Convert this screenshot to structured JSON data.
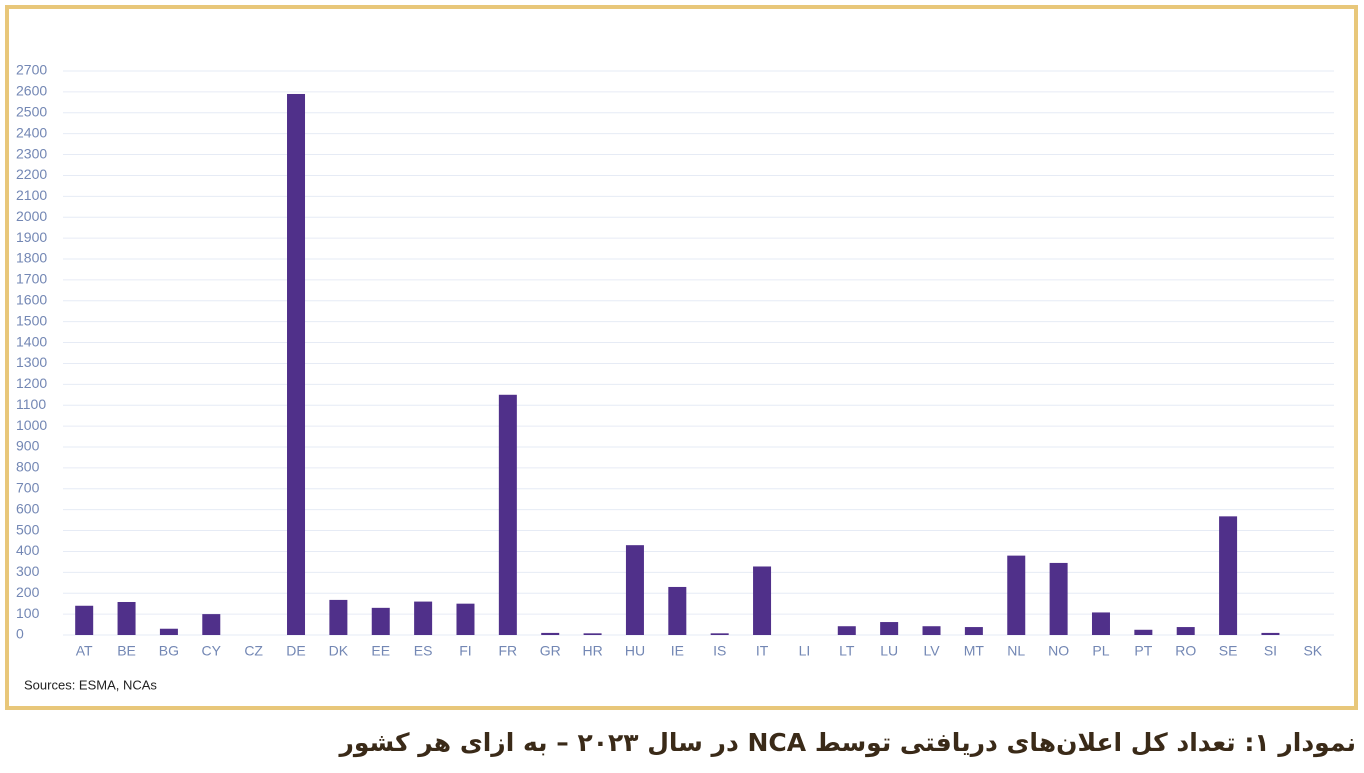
{
  "chart_data": {
    "type": "bar",
    "categories": [
      "AT",
      "BE",
      "BG",
      "CY",
      "CZ",
      "DE",
      "DK",
      "EE",
      "ES",
      "FI",
      "FR",
      "GR",
      "HR",
      "HU",
      "IE",
      "IS",
      "IT",
      "LI",
      "LT",
      "LU",
      "LV",
      "MT",
      "NL",
      "NO",
      "PL",
      "PT",
      "RO",
      "SE",
      "SI",
      "SK"
    ],
    "values": [
      140,
      158,
      30,
      100,
      0,
      2590,
      168,
      130,
      160,
      150,
      1150,
      10,
      8,
      430,
      230,
      8,
      328,
      0,
      42,
      62,
      42,
      38,
      380,
      345,
      108,
      25,
      38,
      568,
      10,
      0
    ],
    "color": "#50308a",
    "ylim": [
      0,
      2700
    ],
    "yticks": [
      0,
      100,
      200,
      300,
      400,
      500,
      600,
      700,
      800,
      900,
      1000,
      1100,
      1200,
      1300,
      1400,
      1500,
      1600,
      1700,
      1800,
      1900,
      2000,
      2100,
      2200,
      2300,
      2400,
      2500,
      2600,
      2700
    ],
    "grid": true,
    "source": "Sources: ESMA, NCAs"
  },
  "caption": "نمودار ۱: تعداد کل اعلان‌های دریافتی توسط NCA در سال ۲۰۲۳ – به ازای هر کشور"
}
